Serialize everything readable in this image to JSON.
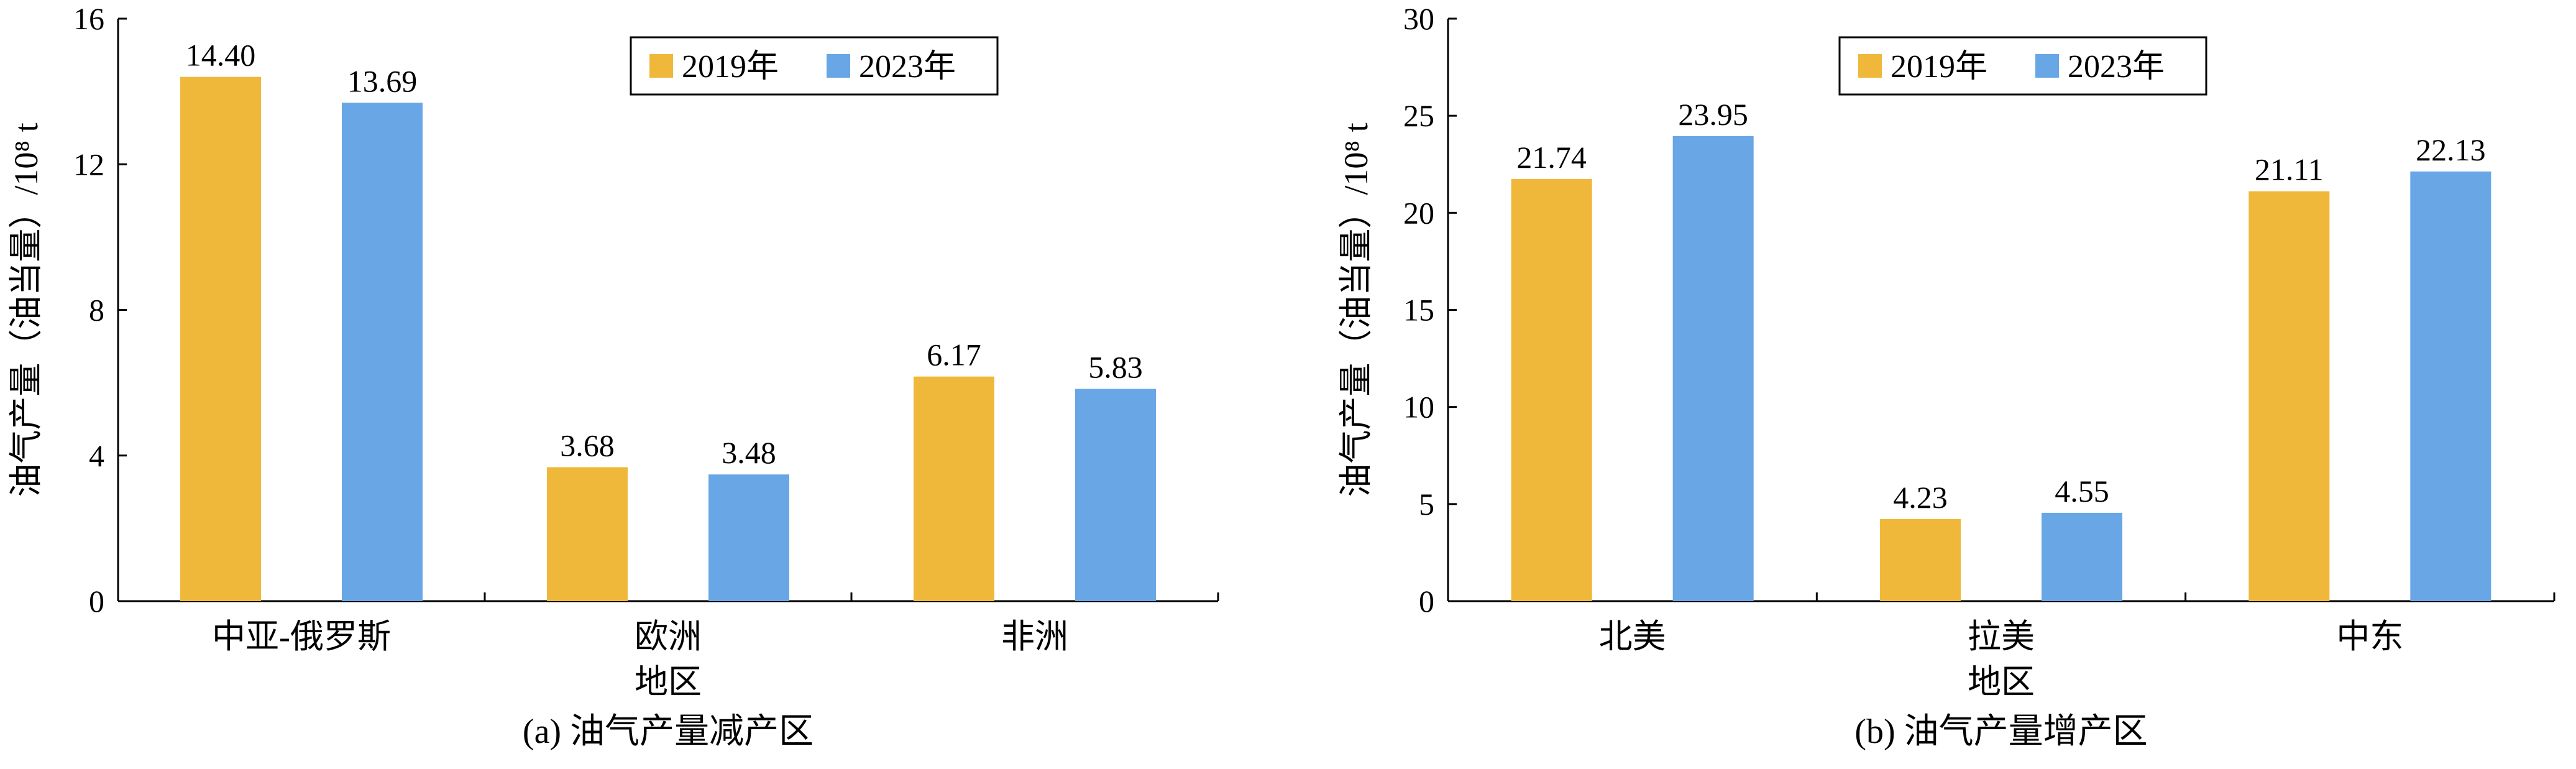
{
  "chart_data": [
    {
      "type": "bar",
      "title": "(a) 油气产量减产区",
      "xlabel": "地区",
      "ylabel": "油气产量（油当量）/10⁸ t",
      "ylim": [
        0,
        16
      ],
      "yticks": [
        0,
        4,
        8,
        12,
        16
      ],
      "categories": [
        "中亚-俄罗斯",
        "欧洲",
        "非洲"
      ],
      "series": [
        {
          "name": "2019年",
          "values": [
            14.4,
            3.68,
            6.17
          ],
          "labels": [
            "14.40",
            "3.68",
            "6.17"
          ],
          "color": "#f0b83a"
        },
        {
          "name": "2023年",
          "values": [
            13.69,
            3.48,
            5.83
          ],
          "labels": [
            "13.69",
            "3.48",
            "5.83"
          ],
          "color": "#68a6e6"
        }
      ],
      "legend_position": "top-right"
    },
    {
      "type": "bar",
      "title": "(b) 油气产量增产区",
      "xlabel": "地区",
      "ylabel": "油气产量（油当量）/10⁸ t",
      "ylim": [
        0,
        30
      ],
      "yticks": [
        0,
        5,
        10,
        15,
        20,
        25,
        30
      ],
      "categories": [
        "北美",
        "拉美",
        "中东"
      ],
      "series": [
        {
          "name": "2019年",
          "values": [
            21.74,
            4.23,
            21.11
          ],
          "labels": [
            "21.74",
            "4.23",
            "21.11"
          ],
          "color": "#f0b83a"
        },
        {
          "name": "2023年",
          "values": [
            23.95,
            4.55,
            22.13
          ],
          "labels": [
            "23.95",
            "4.55",
            "22.13"
          ],
          "color": "#68a6e6"
        }
      ],
      "legend_position": "top-right"
    }
  ]
}
